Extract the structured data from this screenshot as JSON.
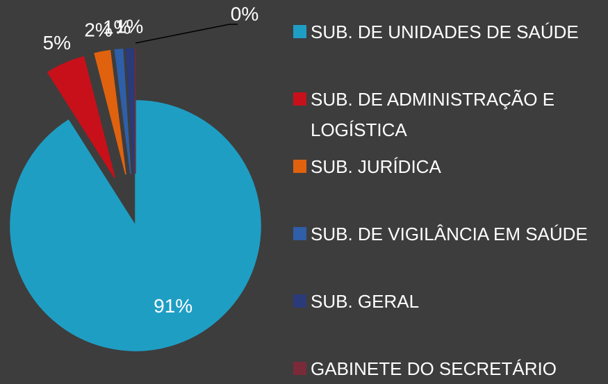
{
  "chart_data": {
    "type": "pie",
    "categories": [
      "SUB. DE UNIDADES DE SAÚDE",
      "SUB. DE ADMINISTRAÇÃO E LOGÍSTICA",
      "SUB. JURÍDICA",
      "SUB. DE VIGILÂNCIA EM SAÚDE",
      "SUB. GERAL",
      "GABINETE DO SECRETÁRIO"
    ],
    "values": [
      91,
      5,
      2,
      1,
      1,
      0
    ],
    "value_labels": [
      "91%",
      "5%",
      "2%",
      "1%",
      "1%",
      "0%"
    ],
    "colors": [
      "#1f9ec4",
      "#c8101a",
      "#e0620e",
      "#2f5fa8",
      "#2b3a78",
      "#7a2a38"
    ],
    "legend": "right"
  }
}
